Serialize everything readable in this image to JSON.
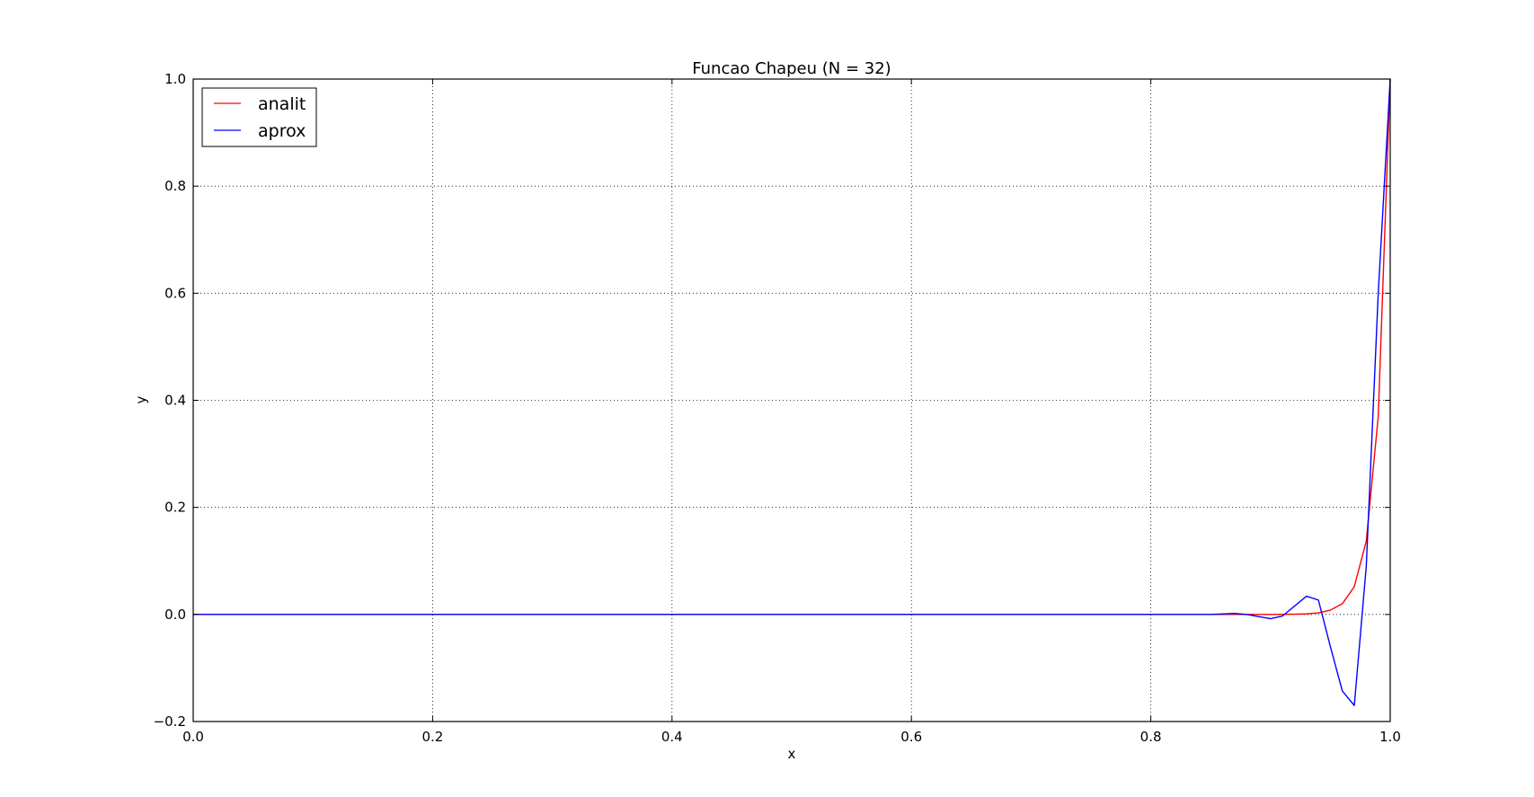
{
  "chart_data": {
    "type": "line",
    "title": "Funcao Chapeu (N = 32)",
    "xlabel": "x",
    "ylabel": "y",
    "xlim": [
      0.0,
      1.0
    ],
    "ylim": [
      -0.2,
      1.0
    ],
    "xticks": [
      0.0,
      0.2,
      0.4,
      0.6,
      0.8,
      1.0
    ],
    "xtick_labels": [
      "0.0",
      "0.2",
      "0.4",
      "0.6",
      "0.8",
      "1.0"
    ],
    "yticks": [
      -0.2,
      0.0,
      0.2,
      0.4,
      0.6,
      0.8,
      1.0
    ],
    "ytick_labels": [
      "−0.2",
      "0.0",
      "0.2",
      "0.4",
      "0.6",
      "0.8",
      "1.0"
    ],
    "grid": true,
    "legend_position": "top-left",
    "series": [
      {
        "name": "analit",
        "color": "#ff0000",
        "x": [
          0.0,
          0.5,
          0.8,
          0.85,
          0.88,
          0.9,
          0.92,
          0.93,
          0.94,
          0.95,
          0.96,
          0.97,
          0.98,
          0.99,
          1.0
        ],
        "y": [
          0.0,
          0.0,
          0.0,
          0.0,
          0.0,
          0.0,
          0.0005,
          0.001,
          0.003,
          0.008,
          0.02,
          0.052,
          0.137,
          0.37,
          1.0
        ]
      },
      {
        "name": "aprox",
        "color": "#0000ff",
        "x": [
          0.0,
          0.5,
          0.8,
          0.85,
          0.87,
          0.88,
          0.89,
          0.9,
          0.91,
          0.93,
          0.94,
          0.95,
          0.96,
          0.97,
          0.98,
          0.99,
          1.0
        ],
        "y": [
          0.0,
          0.0,
          0.0,
          0.0,
          0.002,
          0.0,
          -0.004,
          -0.008,
          -0.003,
          0.034,
          0.027,
          -0.06,
          -0.143,
          -0.17,
          0.09,
          0.6,
          1.0
        ]
      }
    ]
  }
}
